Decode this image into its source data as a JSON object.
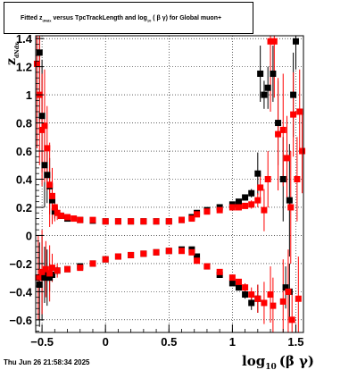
{
  "chart_data": {
    "type": "scatter",
    "title_parts": {
      "prefix": "Fitted  z",
      "sub1": "dNdx",
      "middle": "  versus TpcTrackLength and log",
      "sub2": "10",
      "suffix": " ( β γ) for Global muon+"
    },
    "xlabel_main": "log",
    "xlabel_sub": "10",
    "xlabel_tail": "(β γ)",
    "ylabel_main": "z",
    "ylabel_sub": "dNdx",
    "xlim": [
      -0.55,
      1.56
    ],
    "ylim": [
      -0.69,
      1.42
    ],
    "xticks": [
      {
        "v": -0.5,
        "label": "−0.5"
      },
      {
        "v": 0,
        "label": "0"
      },
      {
        "v": 0.5,
        "label": "0.5"
      },
      {
        "v": 1,
        "label": "1"
      },
      {
        "v": 1.5,
        "label": "1.5"
      }
    ],
    "yticks": [
      {
        "v": -0.6,
        "label": "−0.6"
      },
      {
        "v": -0.4,
        "label": "−0.4"
      },
      {
        "v": -0.2,
        "label": "−0.2"
      },
      {
        "v": 0,
        "label": "0"
      },
      {
        "v": 0.2,
        "label": "0.2"
      },
      {
        "v": 0.4,
        "label": "0.4"
      },
      {
        "v": 0.6,
        "label": "0.6"
      },
      {
        "v": 0.8,
        "label": "0.8"
      },
      {
        "v": 1,
        "label": "1"
      },
      {
        "v": 1.2,
        "label": "1.2"
      },
      {
        "v": 1.4,
        "label": "1.4"
      }
    ],
    "grid": true,
    "series": [
      {
        "color": "#000000",
        "marker": "square",
        "points": [
          [
            -0.52,
            1.3,
            0.5
          ],
          [
            -0.5,
            0.85,
            0.4
          ],
          [
            -0.48,
            0.5,
            0.3
          ],
          [
            -0.46,
            0.43,
            0.2
          ],
          [
            -0.44,
            0.35,
            0.2
          ],
          [
            -0.42,
            0.25,
            0.1
          ],
          [
            -0.4,
            0.17,
            0.05
          ],
          [
            -0.35,
            0.14,
            0.02
          ],
          [
            -0.3,
            0.12,
            0.01
          ],
          [
            -0.2,
            0.11,
            0.01
          ],
          [
            -0.1,
            0.105,
            0.01
          ],
          [
            0,
            0.1,
            0.01
          ],
          [
            0.1,
            0.1,
            0.01
          ],
          [
            0.2,
            0.1,
            0.01
          ],
          [
            0.3,
            0.1,
            0.01
          ],
          [
            0.4,
            0.1,
            0.01
          ],
          [
            0.5,
            0.1,
            0.01
          ],
          [
            0.6,
            0.11,
            0.01
          ],
          [
            0.68,
            0.13,
            0.01
          ],
          [
            0.72,
            0.16,
            0.01
          ],
          [
            0.8,
            0.18,
            0.01
          ],
          [
            0.9,
            0.2,
            0.01
          ],
          [
            1.0,
            0.22,
            0.01
          ],
          [
            1.05,
            0.24,
            0.02
          ],
          [
            1.1,
            0.27,
            0.02
          ],
          [
            1.15,
            0.3,
            0.03
          ],
          [
            1.2,
            0.44,
            0.15
          ],
          [
            1.22,
            1.15,
            0.2
          ],
          [
            1.25,
            1.0,
            0.1
          ],
          [
            1.28,
            1.05,
            0.15
          ],
          [
            1.32,
            1.15,
            0.2
          ],
          [
            1.36,
            0.8,
            0.3
          ],
          [
            1.4,
            0.4,
            0.3
          ],
          [
            1.45,
            0.25,
            0.4
          ],
          [
            1.48,
            1.0,
            0.3
          ],
          [
            1.5,
            1.38,
            0.2
          ],
          [
            -0.52,
            -0.35,
            0.3
          ],
          [
            -0.5,
            -0.3,
            0.3
          ],
          [
            -0.48,
            -0.28,
            0.2
          ],
          [
            -0.46,
            -0.3,
            0.2
          ],
          [
            -0.44,
            -0.3,
            0.1
          ],
          [
            -0.42,
            -0.28,
            0.05
          ],
          [
            -0.38,
            -0.25,
            0.03
          ],
          [
            -0.3,
            -0.24,
            0.01
          ],
          [
            -0.2,
            -0.22,
            0.01
          ],
          [
            -0.1,
            -0.2,
            0.01
          ],
          [
            0,
            -0.17,
            0.01
          ],
          [
            0.1,
            -0.15,
            0.01
          ],
          [
            0.2,
            -0.14,
            0.01
          ],
          [
            0.3,
            -0.13,
            0.01
          ],
          [
            0.4,
            -0.12,
            0.01
          ],
          [
            0.5,
            -0.11,
            0.01
          ],
          [
            0.6,
            -0.1,
            0.01
          ],
          [
            0.68,
            -0.1,
            0.01
          ],
          [
            0.72,
            -0.15,
            0.01
          ],
          [
            0.8,
            -0.22,
            0.01
          ],
          [
            0.9,
            -0.28,
            0.01
          ],
          [
            1.0,
            -0.34,
            0.01
          ],
          [
            1.05,
            -0.37,
            0.02
          ],
          [
            1.1,
            -0.42,
            0.03
          ],
          [
            1.15,
            -0.48,
            0.05
          ],
          [
            1.2,
            -0.45,
            0.1
          ],
          [
            1.42,
            -0.37,
            0.15
          ],
          [
            1.45,
            -0.4,
            0.2
          ]
        ]
      },
      {
        "color": "#ff0000",
        "marker": "square",
        "points": [
          [
            -0.54,
            1.22,
            0.6
          ],
          [
            -0.52,
            1.0,
            0.5
          ],
          [
            -0.5,
            0.75,
            0.4
          ],
          [
            -0.48,
            0.78,
            0.4
          ],
          [
            -0.46,
            0.62,
            0.3
          ],
          [
            -0.44,
            0.36,
            0.3
          ],
          [
            -0.42,
            0.28,
            0.2
          ],
          [
            -0.4,
            0.2,
            0.1
          ],
          [
            -0.38,
            0.16,
            0.05
          ],
          [
            -0.35,
            0.14,
            0.02
          ],
          [
            -0.3,
            0.13,
            0.01
          ],
          [
            -0.25,
            0.12,
            0.01
          ],
          [
            -0.2,
            0.11,
            0.01
          ],
          [
            -0.1,
            0.11,
            0.01
          ],
          [
            0,
            0.1,
            0.01
          ],
          [
            0.1,
            0.1,
            0.01
          ],
          [
            0.2,
            0.1,
            0.01
          ],
          [
            0.3,
            0.1,
            0.01
          ],
          [
            0.4,
            0.1,
            0.01
          ],
          [
            0.5,
            0.1,
            0.01
          ],
          [
            0.6,
            0.11,
            0.01
          ],
          [
            0.68,
            0.12,
            0.01
          ],
          [
            0.72,
            0.15,
            0.01
          ],
          [
            0.8,
            0.17,
            0.01
          ],
          [
            0.9,
            0.18,
            0.01
          ],
          [
            1.0,
            0.2,
            0.01
          ],
          [
            1.05,
            0.2,
            0.02
          ],
          [
            1.1,
            0.21,
            0.02
          ],
          [
            1.15,
            0.22,
            0.03
          ],
          [
            1.2,
            0.25,
            0.05
          ],
          [
            1.22,
            0.34,
            0.1
          ],
          [
            1.25,
            0.18,
            0.15
          ],
          [
            1.28,
            0.4,
            0.2
          ],
          [
            1.3,
            1.38,
            0.5
          ],
          [
            1.33,
            1.38,
            0.4
          ],
          [
            1.36,
            0.72,
            0.4
          ],
          [
            1.4,
            0.75,
            0.4
          ],
          [
            1.43,
            0.55,
            0.3
          ],
          [
            1.46,
            0.2,
            0.4
          ],
          [
            1.48,
            0.86,
            0.3
          ],
          [
            1.51,
            0.4,
            0.3
          ],
          [
            1.53,
            0.88,
            0.3
          ],
          [
            1.55,
            0.6,
            0.3
          ],
          [
            -0.53,
            -0.3,
            0.3
          ],
          [
            -0.5,
            -0.26,
            0.3
          ],
          [
            -0.47,
            -0.24,
            0.2
          ],
          [
            -0.44,
            -0.27,
            0.2
          ],
          [
            -0.42,
            -0.23,
            0.1
          ],
          [
            -0.38,
            -0.25,
            0.05
          ],
          [
            -0.3,
            -0.24,
            0.02
          ],
          [
            -0.2,
            -0.23,
            0.01
          ],
          [
            -0.1,
            -0.2,
            0.01
          ],
          [
            0,
            -0.17,
            0.01
          ],
          [
            0.1,
            -0.15,
            0.01
          ],
          [
            0.2,
            -0.14,
            0.01
          ],
          [
            0.3,
            -0.13,
            0.01
          ],
          [
            0.4,
            -0.12,
            0.01
          ],
          [
            0.5,
            -0.11,
            0.01
          ],
          [
            0.6,
            -0.11,
            0.01
          ],
          [
            0.68,
            -0.12,
            0.01
          ],
          [
            0.72,
            -0.18,
            0.01
          ],
          [
            0.8,
            -0.22,
            0.01
          ],
          [
            0.9,
            -0.26,
            0.01
          ],
          [
            1.0,
            -0.3,
            0.01
          ],
          [
            1.05,
            -0.33,
            0.02
          ],
          [
            1.1,
            -0.37,
            0.03
          ],
          [
            1.15,
            -0.42,
            0.05
          ],
          [
            1.2,
            -0.45,
            0.1
          ],
          [
            1.25,
            -0.48,
            0.15
          ],
          [
            1.3,
            -0.42,
            0.2
          ],
          [
            1.32,
            -0.5,
            0.2
          ],
          [
            1.4,
            -0.47,
            0.3
          ],
          [
            1.44,
            -0.4,
            0.3
          ],
          [
            1.47,
            -0.6,
            0.2
          ],
          [
            1.52,
            -0.45,
            0.3
          ]
        ]
      }
    ]
  },
  "footer": {
    "datestamp": "Thu Jun 26 21:58:34 2025"
  }
}
